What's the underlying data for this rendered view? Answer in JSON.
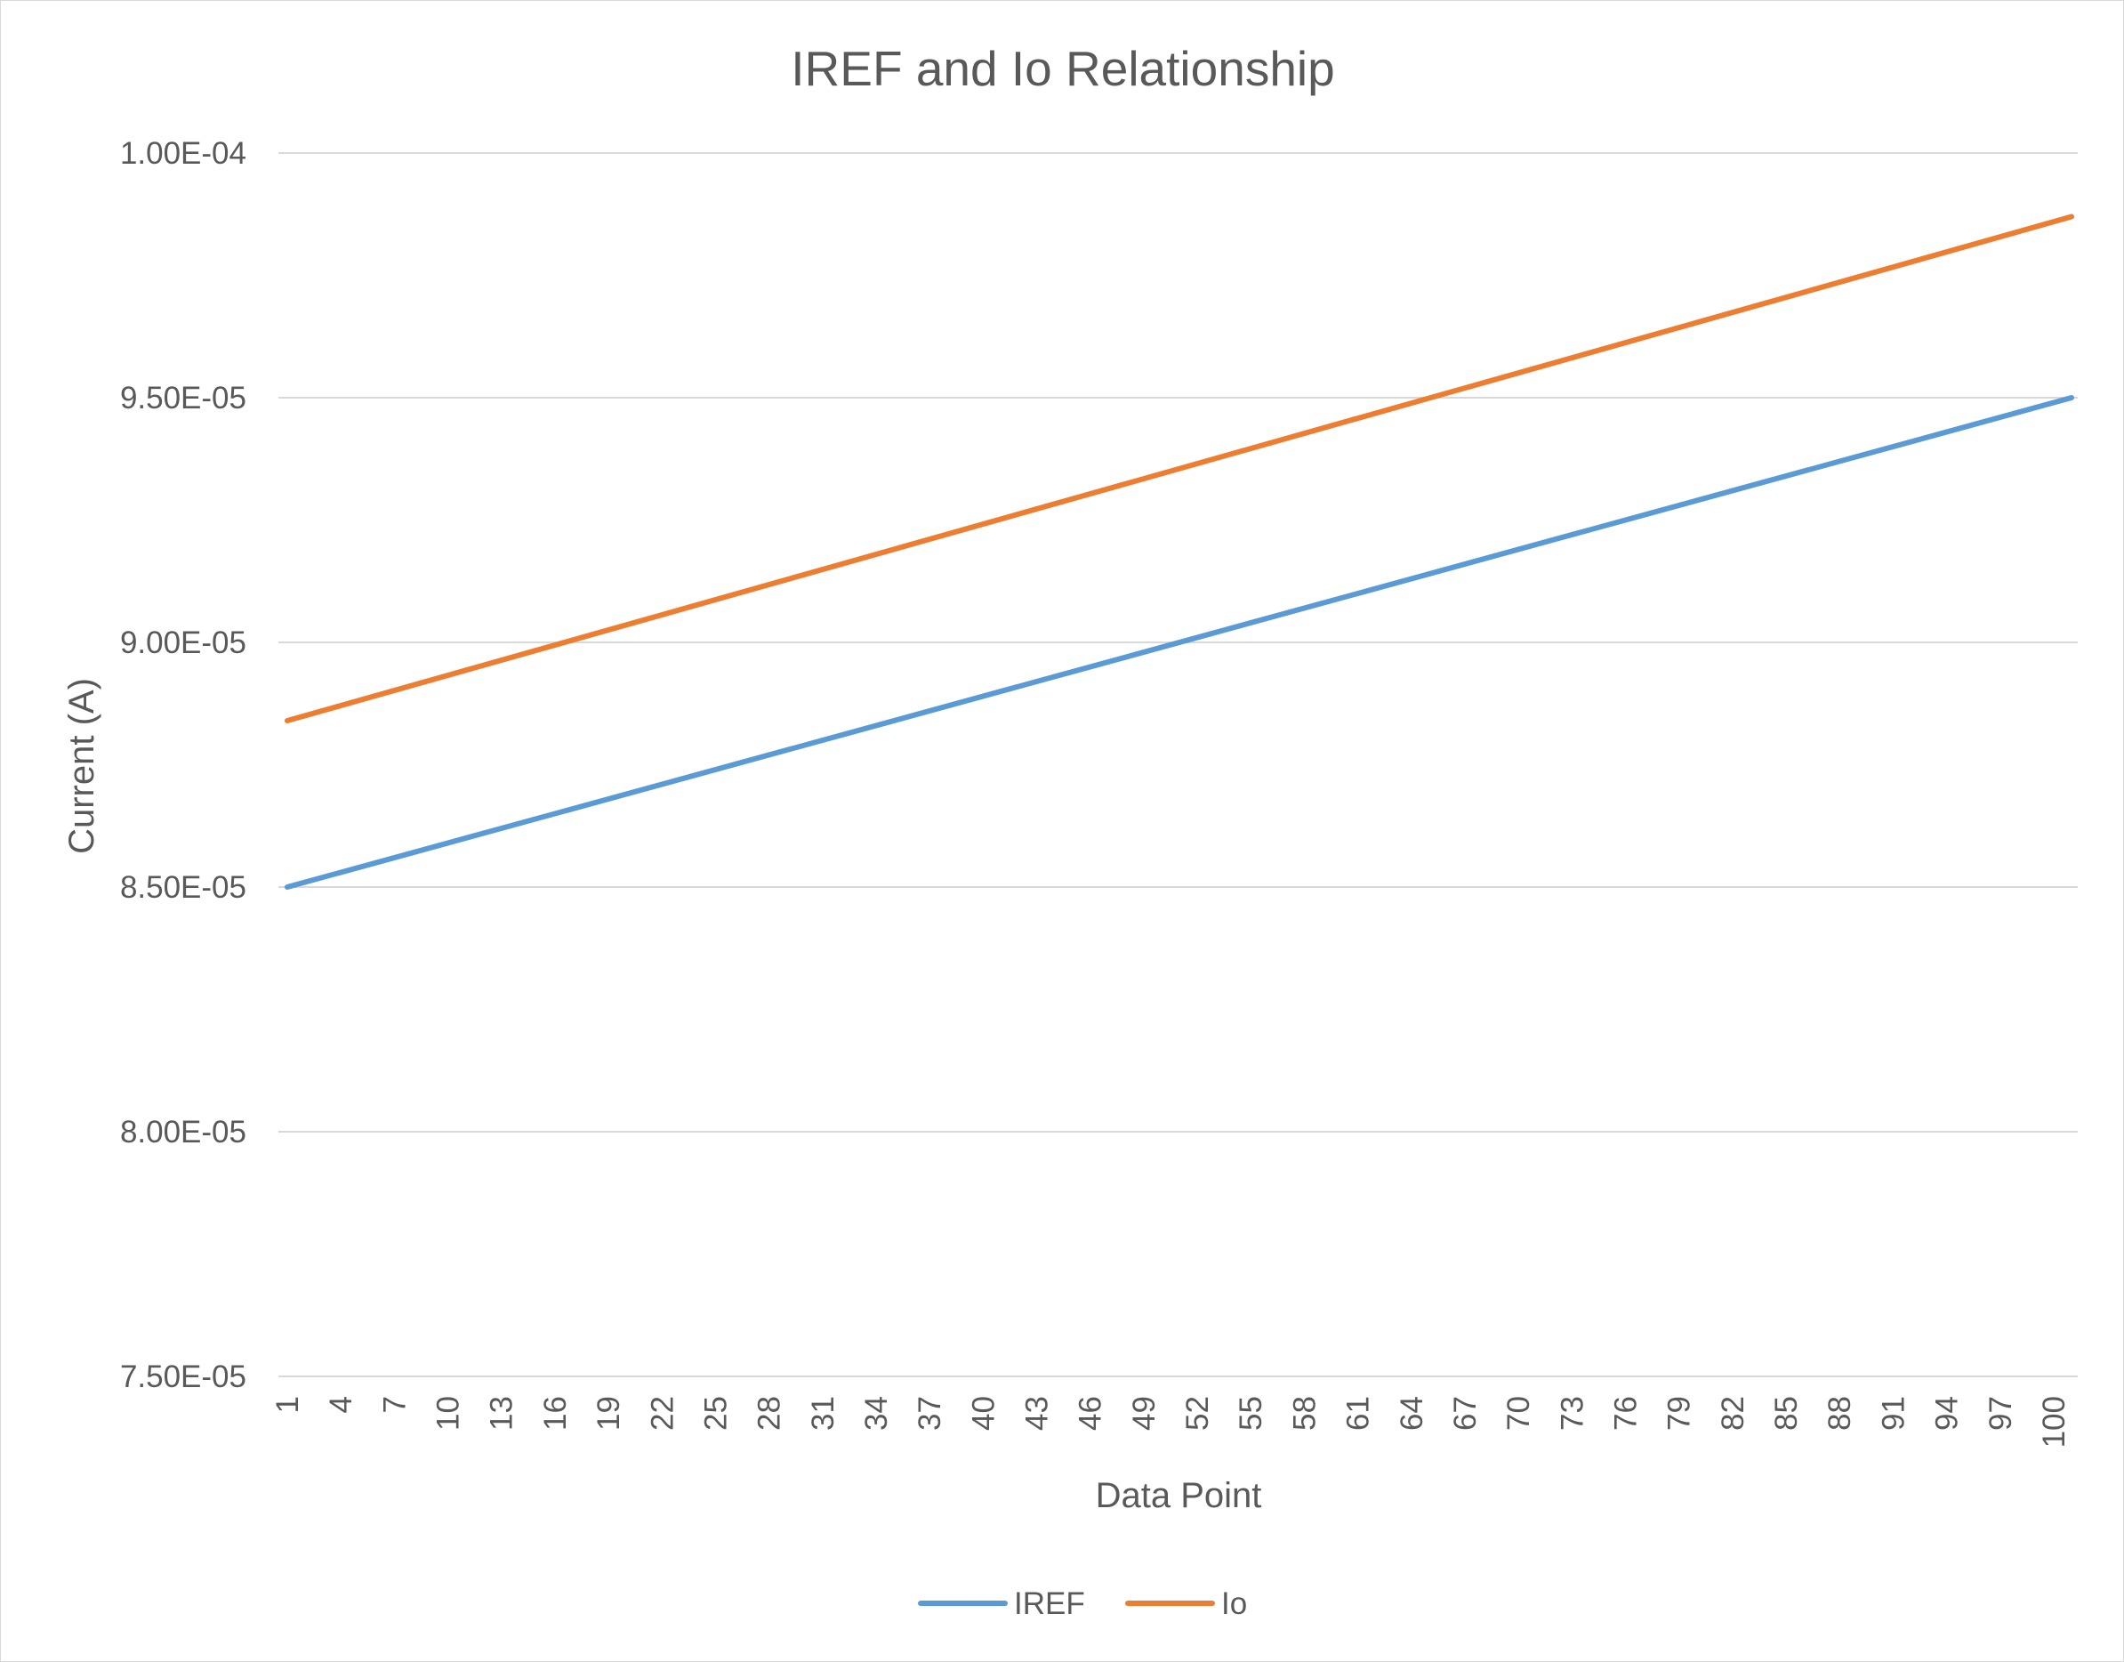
{
  "chart_data": {
    "type": "line",
    "title": "IREF and Io Relationship",
    "xlabel": "Data Point",
    "ylabel": "Current (A)",
    "ylim": [
      7.5e-05,
      0.0001
    ],
    "y_ticks": [
      7.5e-05,
      8e-05,
      8.5e-05,
      9e-05,
      9.5e-05,
      0.0001
    ],
    "y_tick_labels": [
      "7.50E-05",
      "8.00E-05",
      "8.50E-05",
      "9.00E-05",
      "9.50E-05",
      "1.00E-04"
    ],
    "x_range": [
      1,
      101
    ],
    "x_tick_labels": [
      "1",
      "4",
      "7",
      "10",
      "13",
      "16",
      "19",
      "22",
      "25",
      "28",
      "31",
      "34",
      "37",
      "40",
      "43",
      "46",
      "49",
      "52",
      "55",
      "58",
      "61",
      "64",
      "67",
      "70",
      "73",
      "76",
      "79",
      "82",
      "85",
      "88",
      "91",
      "94",
      "97",
      "100"
    ],
    "grid": true,
    "legend_position": "bottom",
    "series": [
      {
        "name": "IREF",
        "color": "#5b9bd5",
        "start": 8.5e-05,
        "end": 9.5e-05,
        "x": [
          1,
          101
        ],
        "y": [
          8.5e-05,
          9.5e-05
        ]
      },
      {
        "name": "Io",
        "color": "#ed7d31",
        "start": 8.84e-05,
        "end": 9.87e-05,
        "x": [
          1,
          101
        ],
        "y": [
          8.84e-05,
          9.87e-05
        ]
      }
    ]
  }
}
